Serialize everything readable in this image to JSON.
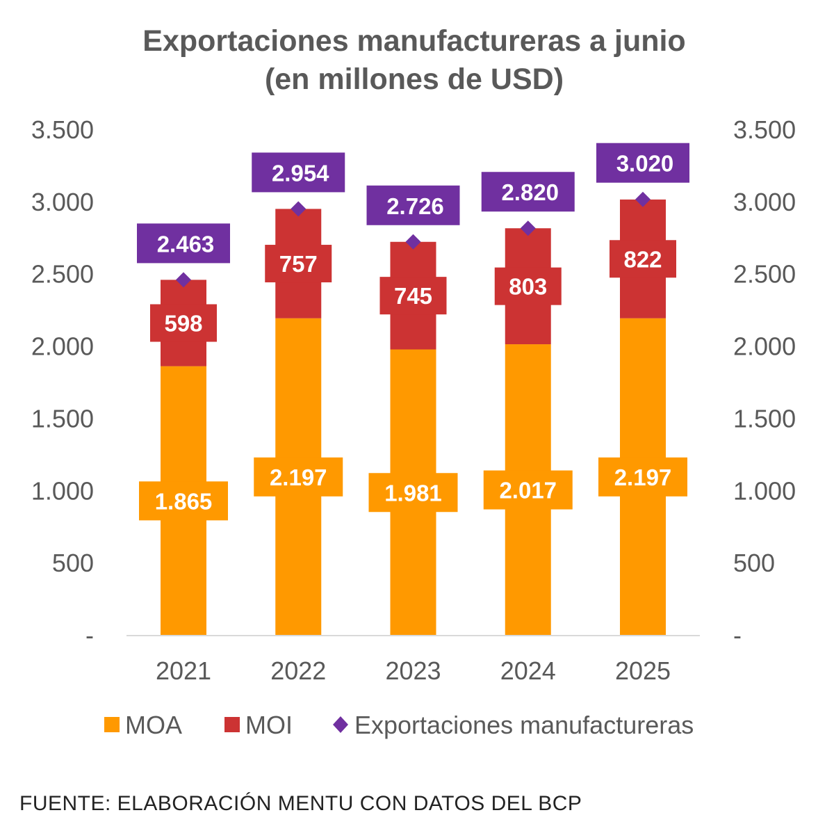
{
  "chart_data": {
    "type": "bar",
    "stacked": true,
    "title": "Exportaciones manufactureras a junio",
    "subtitle": "(en millones de USD)",
    "categories": [
      "2021",
      "2022",
      "2023",
      "2024",
      "2025"
    ],
    "series": [
      {
        "name": "MOA",
        "type": "bar",
        "color": "#FF9900",
        "values": [
          1865,
          2197,
          1981,
          2017,
          2197
        ],
        "labels": [
          "1.865",
          "2.197",
          "1.981",
          "2.017",
          "2.197"
        ]
      },
      {
        "name": "MOI",
        "type": "bar",
        "color": "#CC3333",
        "values": [
          598,
          757,
          745,
          803,
          822
        ],
        "labels": [
          "598",
          "757",
          "745",
          "803",
          "822"
        ]
      },
      {
        "name": "Exportaciones manufactureras",
        "type": "marker",
        "marker": "diamond",
        "color": "#7030A0",
        "values": [
          2463,
          2954,
          2726,
          2820,
          3020
        ],
        "labels": [
          "2.463",
          "2.954",
          "2.726",
          "2.820",
          "3.020"
        ]
      }
    ],
    "ylim": [
      0,
      3500
    ],
    "yticks": [
      0,
      500,
      1000,
      1500,
      2000,
      2500,
      3000,
      3500
    ],
    "ytick_labels": [
      "-",
      "500",
      "1.000",
      "1.500",
      "2.000",
      "2.500",
      "3.000",
      "3.500"
    ],
    "secondary_axis": true,
    "grid": false,
    "legend_position": "bottom",
    "xlabel": "",
    "ylabel": ""
  },
  "source": "FUENTE: ELABORACIÓN MENTU CON DATOS DEL BCP"
}
